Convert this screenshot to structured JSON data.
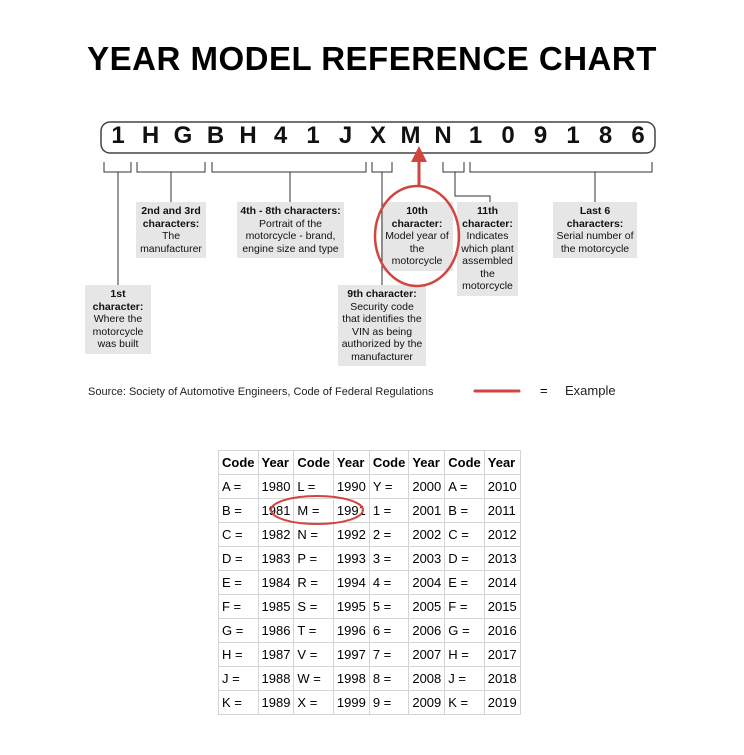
{
  "title": "YEAR MODEL REFERENCE CHART",
  "vin": [
    "1",
    "H",
    "G",
    "B",
    "H",
    "4",
    "1",
    "J",
    "X",
    "M",
    "N",
    "1",
    "0",
    "9",
    "1",
    "8",
    "6"
  ],
  "callouts": [
    {
      "heading": "1st character:",
      "text": "Where the motorcycle was built"
    },
    {
      "heading": "2nd and 3rd characters:",
      "text": "The manufacturer"
    },
    {
      "heading": "4th - 8th characters:",
      "text": "Portrait of the motorcycle - brand, engine size and type"
    },
    {
      "heading": "9th character:",
      "text": "Security code that identifies the VIN as being authorized by the manufacturer"
    },
    {
      "heading": "10th character:",
      "text": "Model year of the motorcycle"
    },
    {
      "heading": "11th character:",
      "text": "Indicates which plant assembled the motorcycle"
    },
    {
      "heading": "Last 6 characters:",
      "text": "Serial number of the motorcycle"
    }
  ],
  "source": "Source:  Society of Automotive Engineers, Code of Federal Regulations",
  "legend": {
    "equals": "=",
    "label": "Example"
  },
  "table": {
    "header": [
      "Code",
      "Year",
      "Code",
      "Year",
      "Code",
      "Year",
      "Code",
      "Year"
    ],
    "rows": [
      [
        "A =",
        "1980",
        "L =",
        "1990",
        "Y =",
        "2000",
        "A =",
        "2010"
      ],
      [
        "B =",
        "1981",
        "M =",
        "1991",
        "1 =",
        "2001",
        "B =",
        "2011"
      ],
      [
        "C =",
        "1982",
        "N =",
        "1992",
        "2 =",
        "2002",
        "C =",
        "2012"
      ],
      [
        "D =",
        "1983",
        "P =",
        "1993",
        "3 =",
        "2003",
        "D =",
        "2013"
      ],
      [
        "E =",
        "1984",
        "R =",
        "1994",
        "4 =",
        "2004",
        "E =",
        "2014"
      ],
      [
        "F =",
        "1985",
        "S =",
        "1995",
        "5 =",
        "2005",
        "F =",
        "2015"
      ],
      [
        "G =",
        "1986",
        "T =",
        "1996",
        "6 =",
        "2006",
        "G =",
        "2016"
      ],
      [
        "H =",
        "1987",
        "V =",
        "1997",
        "7 =",
        "2007",
        "H =",
        "2017"
      ],
      [
        "J =",
        "1988",
        "W =",
        "1998",
        "8 =",
        "2008",
        "J =",
        "2018"
      ],
      [
        "K =",
        "1989",
        "X =",
        "1999",
        "9 =",
        "2009",
        "K =",
        "2019"
      ]
    ]
  }
}
